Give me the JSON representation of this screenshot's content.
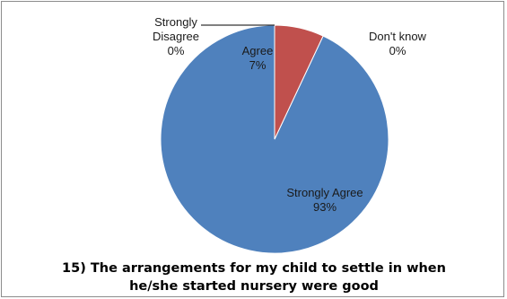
{
  "chart_data": {
    "type": "pie",
    "title_lines": [
      "15) The arrangements for my child to settle in when",
      "he/she started nursery were good"
    ],
    "slices": [
      {
        "label_lines": [
          "Strongly Agree"
        ],
        "percent_label": "93%",
        "value": 93,
        "color": "#4f81bd"
      },
      {
        "label_lines": [
          "Agree"
        ],
        "percent_label": "7%",
        "value": 7,
        "color": "#c0504d"
      },
      {
        "label_lines": [
          "Strongly",
          "Disagree"
        ],
        "percent_label": "0%",
        "value": 0,
        "color": "#9bbb59"
      },
      {
        "label_lines": [
          "Don't know"
        ],
        "percent_label": "0%",
        "value": 0,
        "color": "#8064a2"
      }
    ]
  }
}
